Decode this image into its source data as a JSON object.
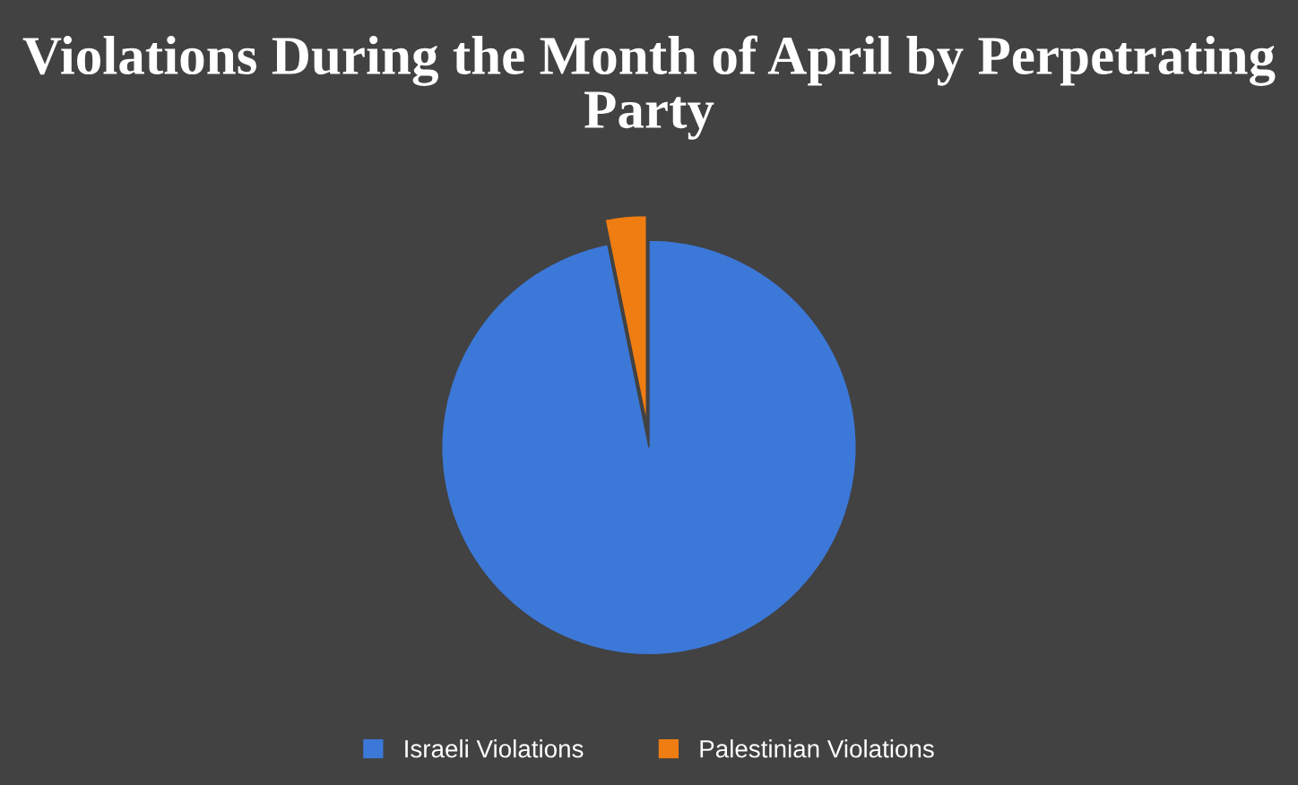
{
  "chart_data": {
    "type": "pie",
    "title": "Violations During the Month of April by Perpetrating Party",
    "categories": [
      "Israeli Violations",
      "Palestinian Violations"
    ],
    "values": [
      96.8,
      3.2
    ],
    "colors": [
      "#3c78d8",
      "#f07d12"
    ],
    "legend": "bottom"
  }
}
